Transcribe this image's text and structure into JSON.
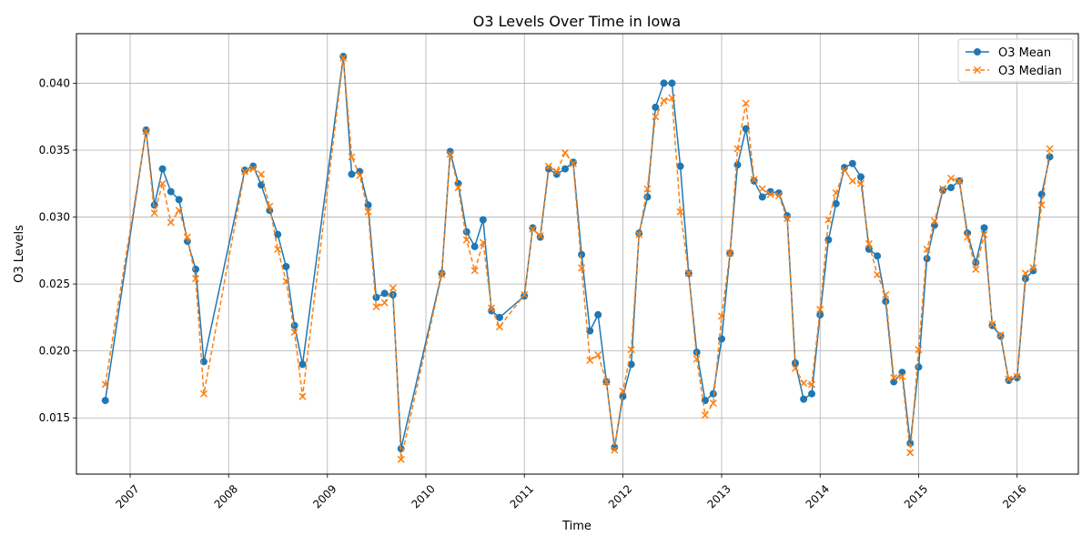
{
  "chart_data": {
    "type": "line",
    "title": "O3 Levels Over Time in Iowa",
    "xlabel": "Time",
    "ylabel": "O3 Levels",
    "xlim": [
      "2006-06-16",
      "2016-08-15"
    ],
    "ylim": [
      0.0108,
      0.0437
    ],
    "x_ticks": [
      "2007",
      "2008",
      "2009",
      "2010",
      "2011",
      "2012",
      "2013",
      "2014",
      "2015",
      "2016"
    ],
    "y_ticks": [
      "0.015",
      "0.020",
      "0.025",
      "0.030",
      "0.035",
      "0.040"
    ],
    "grid": true,
    "legend": "top-right",
    "colors": {
      "mean": "#1f77b4",
      "median": "#ff7f0e",
      "grid": "#b0b0b0"
    },
    "x": [
      "2006-10-01",
      "2007-03-01",
      "2007-04-01",
      "2007-05-01",
      "2007-06-01",
      "2007-07-01",
      "2007-08-01",
      "2007-09-01",
      "2007-10-01",
      "2008-03-01",
      "2008-04-01",
      "2008-05-01",
      "2008-06-01",
      "2008-07-01",
      "2008-08-01",
      "2008-09-01",
      "2008-10-01",
      "2009-03-01",
      "2009-04-01",
      "2009-05-01",
      "2009-06-01",
      "2009-07-01",
      "2009-08-01",
      "2009-09-01",
      "2009-10-01",
      "2010-03-01",
      "2010-04-01",
      "2010-05-01",
      "2010-06-01",
      "2010-07-01",
      "2010-08-01",
      "2010-09-01",
      "2010-10-01",
      "2011-01-01",
      "2011-02-01",
      "2011-03-01",
      "2011-04-01",
      "2011-05-01",
      "2011-06-01",
      "2011-07-01",
      "2011-08-01",
      "2011-09-01",
      "2011-10-01",
      "2011-11-01",
      "2011-12-01",
      "2012-01-01",
      "2012-02-01",
      "2012-03-01",
      "2012-04-01",
      "2012-05-01",
      "2012-06-01",
      "2012-07-01",
      "2012-08-01",
      "2012-09-01",
      "2012-10-01",
      "2012-11-01",
      "2012-12-01",
      "2013-01-01",
      "2013-02-01",
      "2013-03-01",
      "2013-04-01",
      "2013-05-01",
      "2013-06-01",
      "2013-07-01",
      "2013-08-01",
      "2013-09-01",
      "2013-10-01",
      "2013-11-01",
      "2013-12-01",
      "2014-01-01",
      "2014-02-01",
      "2014-03-01",
      "2014-04-01",
      "2014-05-01",
      "2014-06-01",
      "2014-07-01",
      "2014-08-01",
      "2014-09-01",
      "2014-10-01",
      "2014-11-01",
      "2014-12-01",
      "2015-01-01",
      "2015-02-01",
      "2015-03-01",
      "2015-04-01",
      "2015-05-01",
      "2015-06-01",
      "2015-07-01",
      "2015-08-01",
      "2015-09-01",
      "2015-10-01",
      "2015-11-01",
      "2015-12-01",
      "2016-01-01",
      "2016-02-01",
      "2016-03-01",
      "2016-04-01",
      "2016-05-01"
    ],
    "series": [
      {
        "name": "O3 Mean",
        "marker": "circle",
        "linestyle": "solid",
        "values": [
          0.0163,
          0.0365,
          0.0309,
          0.0336,
          0.0319,
          0.0313,
          0.0282,
          0.0261,
          0.0192,
          0.0335,
          0.0338,
          0.0324,
          0.0305,
          0.0287,
          0.0263,
          0.0219,
          0.019,
          0.042,
          0.0332,
          0.0334,
          0.0309,
          0.024,
          0.0243,
          0.0242,
          0.0127,
          0.0258,
          0.0349,
          0.0325,
          0.0289,
          0.0278,
          0.0298,
          0.023,
          0.0225,
          0.0241,
          0.0292,
          0.0285,
          0.0336,
          0.0332,
          0.0336,
          0.0341,
          0.0272,
          0.0215,
          0.0227,
          0.0177,
          0.0128,
          0.0166,
          0.019,
          0.0288,
          0.0315,
          0.0382,
          0.04,
          0.04,
          0.0338,
          0.0258,
          0.0199,
          0.0163,
          0.0168,
          0.0209,
          0.0273,
          0.0339,
          0.0366,
          0.0327,
          0.0315,
          0.0319,
          0.0318,
          0.0301,
          0.0191,
          0.0164,
          0.0168,
          0.0227,
          0.0283,
          0.031,
          0.0337,
          0.034,
          0.033,
          0.0276,
          0.0271,
          0.0237,
          0.0177,
          0.0184,
          0.0131,
          0.0188,
          0.0269,
          0.0294,
          0.032,
          0.0322,
          0.0327,
          0.0288,
          0.0266,
          0.0292,
          0.0219,
          0.0211,
          0.0178,
          0.018,
          0.0254,
          0.026,
          0.0317,
          0.0345
        ]
      },
      {
        "name": "O3 Median",
        "marker": "x",
        "linestyle": "dashed",
        "values": [
          0.0175,
          0.0364,
          0.0303,
          0.0325,
          0.0296,
          0.0305,
          0.0285,
          0.0254,
          0.0168,
          0.0334,
          0.0336,
          0.0332,
          0.0308,
          0.0276,
          0.0252,
          0.0214,
          0.0166,
          0.0419,
          0.0345,
          0.0331,
          0.0304,
          0.0233,
          0.0236,
          0.0247,
          0.0119,
          0.0257,
          0.0347,
          0.0322,
          0.0283,
          0.026,
          0.0281,
          0.0232,
          0.0218,
          0.0242,
          0.0291,
          0.0286,
          0.0338,
          0.0334,
          0.0348,
          0.034,
          0.0262,
          0.0193,
          0.0197,
          0.0177,
          0.0126,
          0.017,
          0.0201,
          0.0287,
          0.0321,
          0.0375,
          0.0387,
          0.0389,
          0.0304,
          0.0258,
          0.0194,
          0.0152,
          0.0161,
          0.0226,
          0.0273,
          0.0351,
          0.0385,
          0.0328,
          0.0321,
          0.0317,
          0.0316,
          0.0299,
          0.0187,
          0.0176,
          0.0175,
          0.0231,
          0.0298,
          0.0318,
          0.0335,
          0.0327,
          0.0325,
          0.028,
          0.0257,
          0.0242,
          0.018,
          0.0181,
          0.0124,
          0.0201,
          0.0276,
          0.0297,
          0.0321,
          0.0329,
          0.0327,
          0.0285,
          0.0261,
          0.0287,
          0.022,
          0.0212,
          0.0179,
          0.0181,
          0.0258,
          0.0262,
          0.0309,
          0.0351
        ]
      }
    ]
  }
}
